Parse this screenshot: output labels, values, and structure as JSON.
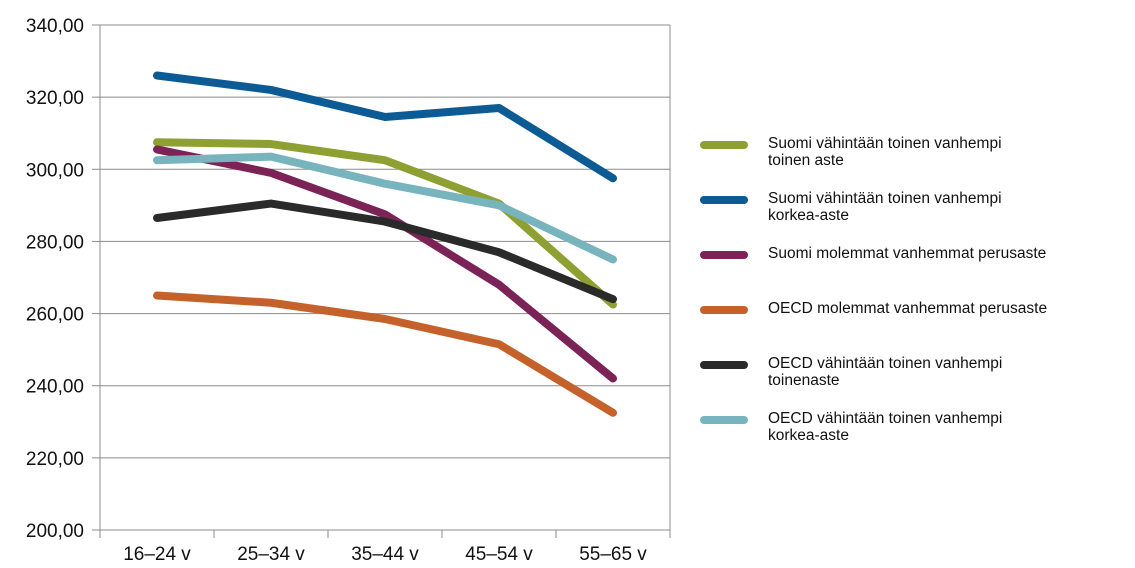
{
  "chart_data": {
    "type": "line",
    "categories": [
      "16–24 v",
      "25–34 v",
      "35–44 v",
      "45–54 v",
      "55–65 v"
    ],
    "ylim": [
      200,
      340
    ],
    "yticks": [
      "200,00",
      "220,00",
      "240,00",
      "260,00",
      "280,00",
      "300,00",
      "320,00",
      "340,00"
    ],
    "grid": true,
    "legend_position": "right",
    "series": [
      {
        "name_lines": [
          "Suomi  vähintään toinen vanhempi",
          "toinen aste"
        ],
        "color": "#8fa032",
        "values": [
          307.5,
          307,
          302.5,
          290.5,
          262.5
        ]
      },
      {
        "name_lines": [
          "Suomi  vähintään toinen vanhempi",
          "korkea-aste"
        ],
        "color": "#0d5b94",
        "values": [
          326,
          322,
          314.5,
          317,
          297.5
        ]
      },
      {
        "name_lines": [
          "Suomi molemmat vanhemmat perusaste"
        ],
        "color": "#7b2357",
        "values": [
          305.5,
          299,
          287.5,
          268,
          242
        ]
      },
      {
        "name_lines": [
          "OECD molemmat vanhemmat perusaste"
        ],
        "color": "#c5622b",
        "values": [
          265,
          263,
          258.5,
          251.5,
          232.5
        ]
      },
      {
        "name_lines": [
          "OECD vähintään toinen vanhempi",
          "toinenaste"
        ],
        "color": "#2a2a2a",
        "values": [
          286.5,
          290.5,
          285.5,
          277,
          264
        ]
      },
      {
        "name_lines": [
          "OECD vähintään toinen vanhempi",
          "korkea-aste"
        ],
        "color": "#78b4bd",
        "values": [
          302.5,
          303.5,
          296,
          290,
          275
        ]
      }
    ]
  }
}
